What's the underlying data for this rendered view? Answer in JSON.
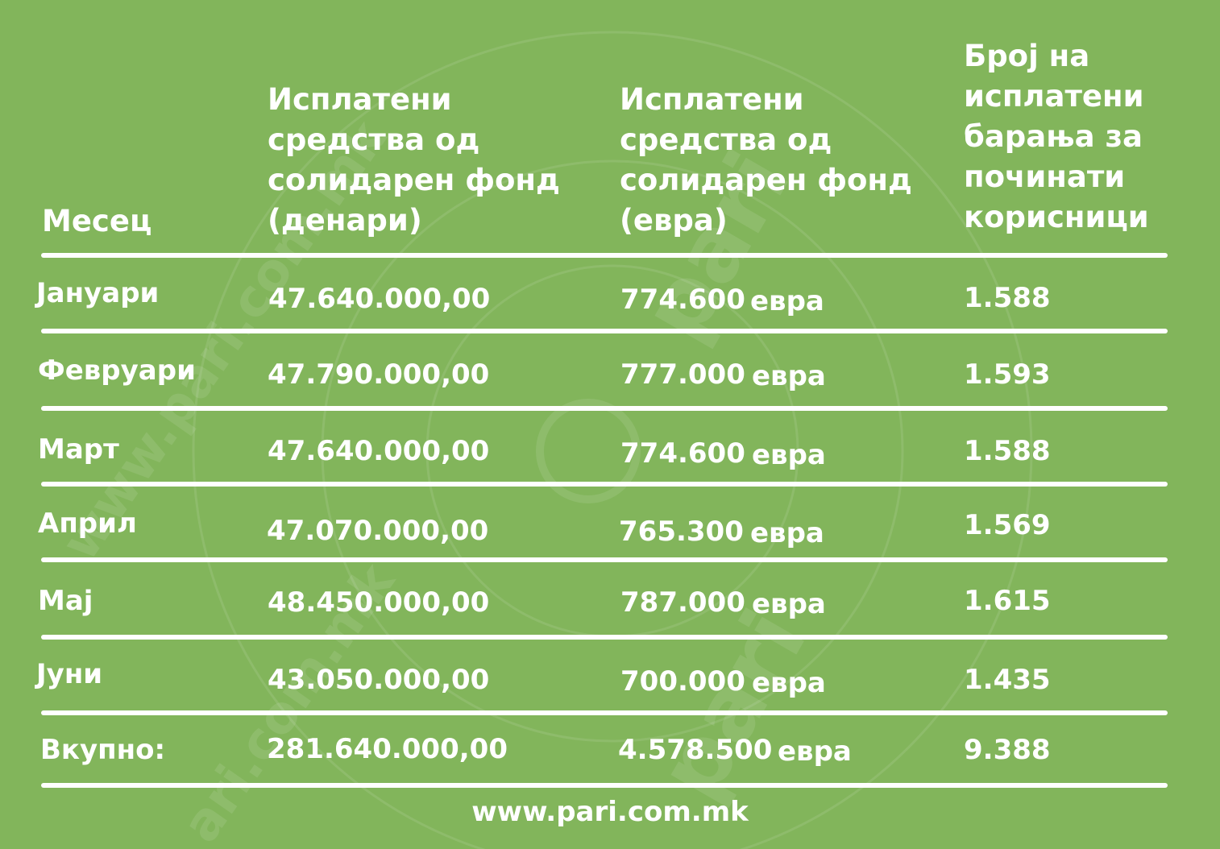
{
  "table": {
    "headers": {
      "month": "Месец",
      "denars": "Исплатени\nсредства од\nсолидарен фонд\n(денари)",
      "euros": "Исплатени\nсредства од\nсолидарен фонд\n(евра)",
      "count": "Број на\nисплатени\nбарања за\nпочинати\nкорисници"
    },
    "rows": [
      {
        "month": "Јануари",
        "denars": "47.640.000,00",
        "euros": "774.600",
        "euro_unit": "евра",
        "count": "1.588"
      },
      {
        "month": "Февруари",
        "denars": "47.790.000,00",
        "euros": "777.000",
        "euro_unit": "евра",
        "count": "1.593"
      },
      {
        "month": "Март",
        "denars": "47.640.000,00",
        "euros": "774.600",
        "euro_unit": "евра",
        "count": "1.588"
      },
      {
        "month": "Април",
        "denars": "47.070.000,00",
        "euros": "765.300",
        "euro_unit": "евра",
        "count": "1.569"
      },
      {
        "month": "Мај",
        "denars": "48.450.000,00",
        "euros": "787.000",
        "euro_unit": "евра",
        "count": "1.615"
      },
      {
        "month": "Јуни",
        "denars": "43.050.000,00",
        "euros": "700.000",
        "euro_unit": "евра",
        "count": "1.435"
      }
    ],
    "total": {
      "month": "Вкупно:",
      "denars": "281.640.000,00",
      "euros": "4.578.500",
      "euro_unit": "евра",
      "count": "9.388"
    }
  },
  "footer": {
    "url": "www.pari.com.mk"
  },
  "watermark": {
    "text": "www.pari.com.mk",
    "logo": "pari"
  },
  "colors": {
    "background": "#82b55b",
    "text": "#ffffff"
  }
}
